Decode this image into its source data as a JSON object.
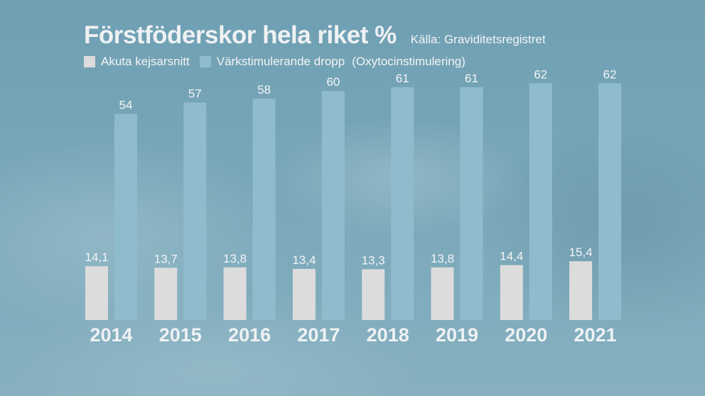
{
  "chart_data": {
    "type": "bar",
    "title": "Förstföderskor hela riket %",
    "source": "Källa: Graviditetsregistret",
    "categories": [
      "2014",
      "2015",
      "2016",
      "2017",
      "2018",
      "2019",
      "2020",
      "2021"
    ],
    "series": [
      {
        "name": "Akuta kejsarsnitt",
        "color": "#dcdcdc",
        "values": [
          14.1,
          13.7,
          13.8,
          13.4,
          13.3,
          13.8,
          14.4,
          15.4
        ],
        "labels": [
          "14,1",
          "13,7",
          "13,8",
          "13,4",
          "13,3",
          "13,8",
          "14,4",
          "15,4"
        ]
      },
      {
        "name": "Värkstimulerande dropp",
        "color": "#8fbccd",
        "values": [
          54,
          57,
          58,
          60,
          61,
          61,
          62,
          62
        ],
        "labels": [
          "54",
          "57",
          "58",
          "60",
          "61",
          "61",
          "62",
          "62"
        ]
      }
    ],
    "legend_note": "(Oxytocinstimulering)",
    "ylim": [
      0,
      65
    ],
    "legend_position": "top-left",
    "grid": false
  }
}
